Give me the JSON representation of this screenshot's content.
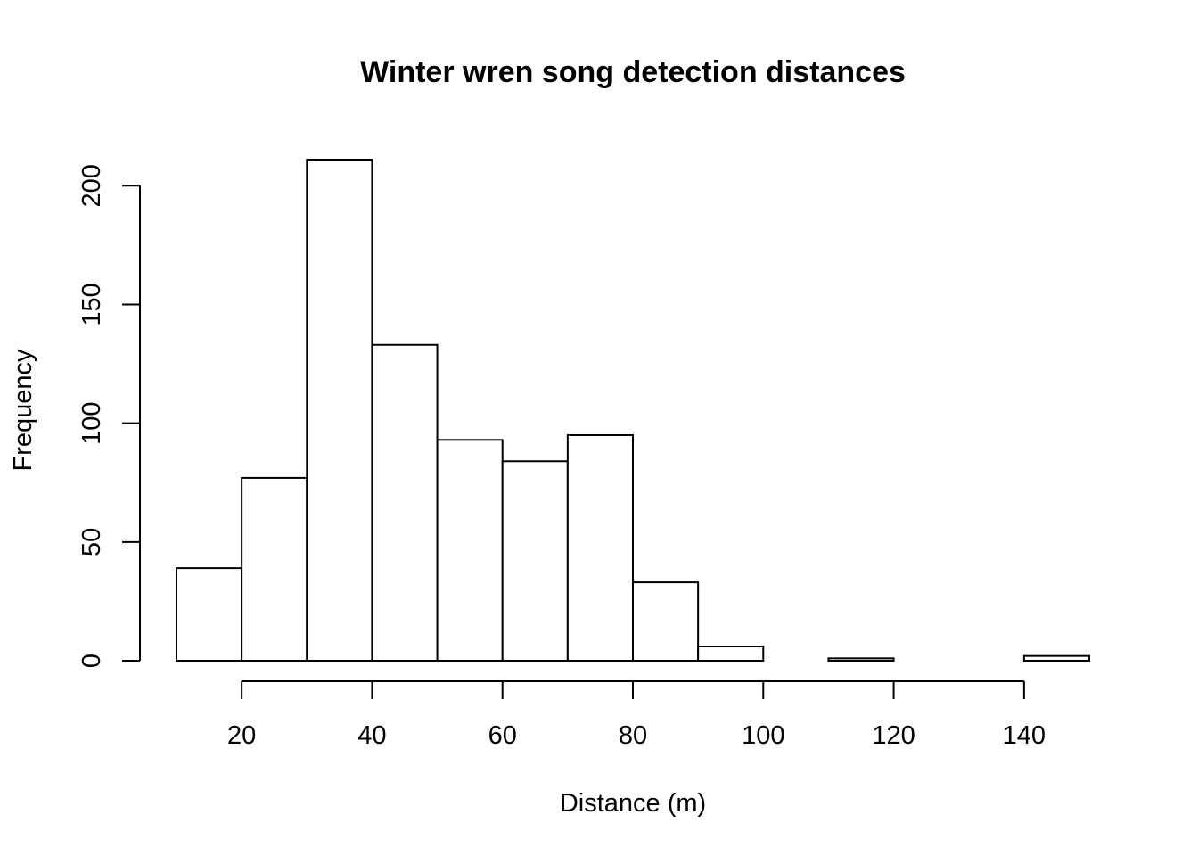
{
  "chart_data": {
    "type": "bar",
    "title": "Winter wren song detection distances",
    "xlabel": "Distance (m)",
    "ylabel": "Frequency",
    "bins": [
      {
        "start": 10,
        "end": 20,
        "count": 39
      },
      {
        "start": 20,
        "end": 30,
        "count": 77
      },
      {
        "start": 30,
        "end": 40,
        "count": 211
      },
      {
        "start": 40,
        "end": 50,
        "count": 133
      },
      {
        "start": 50,
        "end": 60,
        "count": 93
      },
      {
        "start": 60,
        "end": 70,
        "count": 84
      },
      {
        "start": 70,
        "end": 80,
        "count": 95
      },
      {
        "start": 80,
        "end": 90,
        "count": 33
      },
      {
        "start": 90,
        "end": 100,
        "count": 6
      },
      {
        "start": 100,
        "end": 110,
        "count": 0
      },
      {
        "start": 110,
        "end": 120,
        "count": 1
      },
      {
        "start": 120,
        "end": 130,
        "count": 0
      },
      {
        "start": 130,
        "end": 140,
        "count": 0
      },
      {
        "start": 140,
        "end": 150,
        "count": 2
      }
    ],
    "xlim": [
      10,
      150
    ],
    "ylim": [
      0,
      211
    ],
    "x_ticks": [
      20,
      40,
      60,
      80,
      100,
      120,
      140
    ],
    "y_ticks": [
      0,
      50,
      100,
      150,
      200
    ],
    "grid": false,
    "legend": "none",
    "colors": {
      "bar_fill": "#ffffff",
      "bar_stroke": "#000000"
    }
  }
}
